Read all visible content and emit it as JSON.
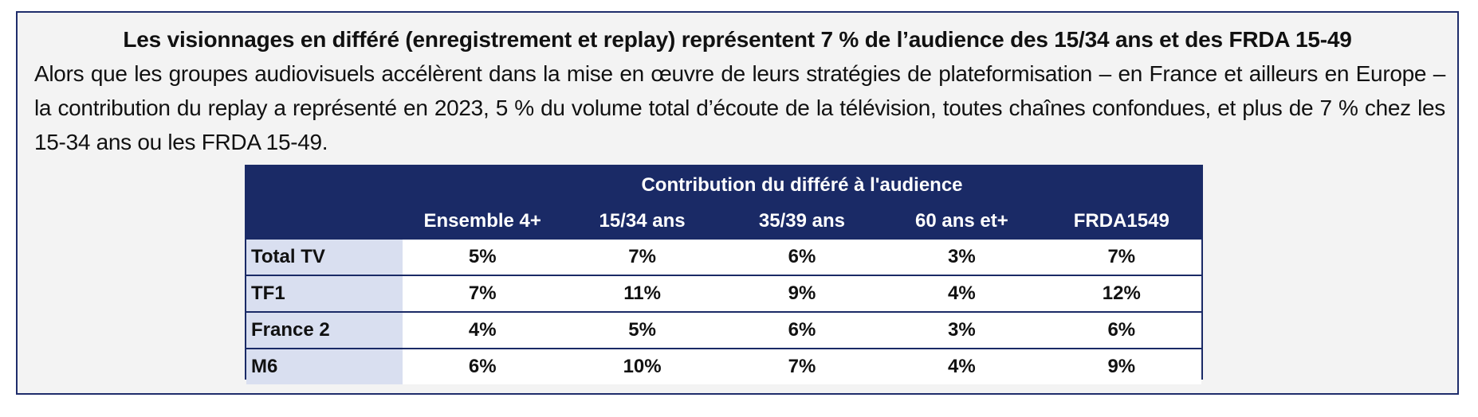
{
  "headline": "Les visionnages en différé (enregistrement et replay) représentent 7 % de l’audience des 15/34 ans et des FRDA 15-49",
  "paragraph": "Alors que les groupes audiovisuels accélèrent dans la mise en œuvre de leurs stratégies de plateformisation – en France et ailleurs en Europe – la contribution du replay a représenté en 2023, 5 % du volume total d’écoute de la télévision, toutes chaînes confondues, et plus de 7 % chez les 15-34 ans ou les FRDA 15-49.",
  "table": {
    "title": "Contribution du différé à l'audience",
    "columns": [
      "Ensemble 4+",
      "15/34 ans",
      "35/39 ans",
      "60 ans et+",
      "FRDA1549"
    ],
    "rows": [
      {
        "label": "Total TV",
        "values": [
          "5%",
          "7%",
          "6%",
          "3%",
          "7%"
        ]
      },
      {
        "label": "TF1",
        "values": [
          "7%",
          "11%",
          "9%",
          "4%",
          "12%"
        ]
      },
      {
        "label": "France 2",
        "values": [
          "4%",
          "5%",
          "6%",
          "3%",
          "6%"
        ]
      },
      {
        "label": "M6",
        "values": [
          "6%",
          "10%",
          "7%",
          "4%",
          "9%"
        ]
      }
    ]
  },
  "colors": {
    "header_navy": "#1a2a66",
    "row_label_bg": "#d9dff0",
    "frame_bg": "#f3f3f3"
  }
}
